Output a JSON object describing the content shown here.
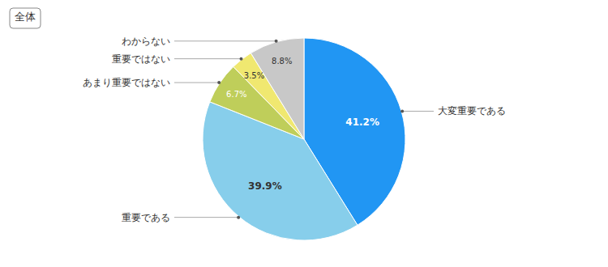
{
  "chart_data": {
    "type": "pie",
    "title": "全体",
    "categories": [
      "大変重要である",
      "重要である",
      "あまり重要ではない",
      "重要ではない",
      "わからない"
    ],
    "values": [
      41.2,
      39.9,
      6.7,
      3.5,
      8.8
    ],
    "value_labels": [
      "41.2%",
      "39.9%",
      "6.7%",
      "3.5%",
      "8.8%"
    ],
    "colors": [
      "#2196F3",
      "#87CEEB",
      "#BFCE5A",
      "#F0E870",
      "#C8C8C8"
    ],
    "data_labels": true
  }
}
